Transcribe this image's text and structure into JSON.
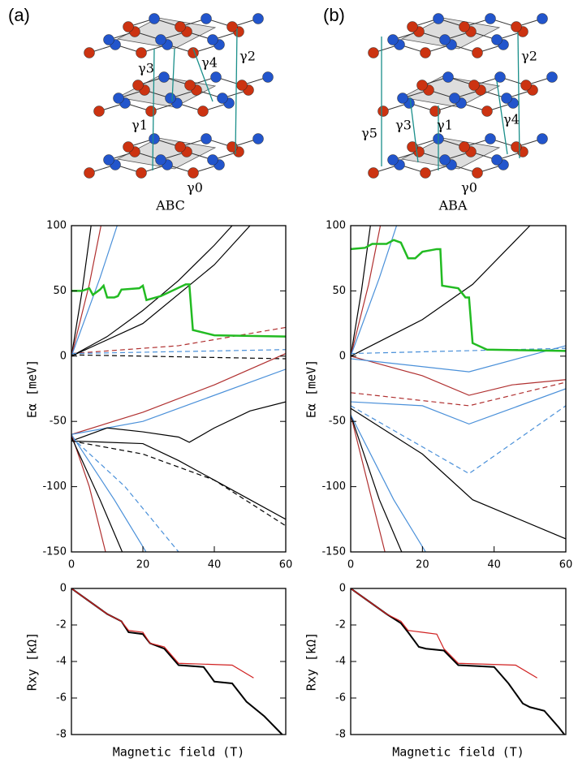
{
  "diagrams": [
    {
      "label": "(a)",
      "stacking": "ABC",
      "gammas": [
        "γ3",
        "γ4",
        "γ2",
        "γ1",
        "γ0"
      ]
    },
    {
      "label": "(b)",
      "stacking": "ABA",
      "gammas": [
        "γ2",
        "γ5",
        "γ3",
        "γ1",
        "γ4",
        "γ0"
      ]
    }
  ],
  "chart_data": [
    {
      "type": "line",
      "y_label": "Eα [meV]",
      "xlim": [
        0,
        60
      ],
      "ylim": [
        -150,
        100
      ],
      "xticks": [
        0,
        20,
        40,
        60
      ],
      "yticks": [
        100,
        50,
        0,
        -50,
        -100,
        -150
      ],
      "series": [
        {
          "color": "#000000",
          "x": [
            0,
            3,
            6
          ],
          "values": [
            0,
            50,
            110
          ]
        },
        {
          "color": "#b03030",
          "x": [
            0,
            5,
            9
          ],
          "values": [
            0,
            55,
            110
          ]
        },
        {
          "color": "#4a90d9",
          "x": [
            0,
            8,
            14
          ],
          "values": [
            0,
            60,
            110
          ]
        },
        {
          "color": "#000000",
          "x": [
            0,
            10,
            20,
            30,
            40,
            45
          ],
          "values": [
            0,
            15,
            35,
            58,
            85,
            100
          ]
        },
        {
          "color": "#000000",
          "x": [
            0,
            20,
            40,
            50
          ],
          "values": [
            0,
            25,
            70,
            100
          ]
        },
        {
          "color": "#b03030",
          "dash": true,
          "x": [
            0,
            30,
            60
          ],
          "values": [
            2,
            8,
            22
          ]
        },
        {
          "color": "#4a90d9",
          "dash": true,
          "x": [
            0,
            60
          ],
          "values": [
            2,
            5
          ]
        },
        {
          "color": "#000000",
          "dash": true,
          "x": [
            0,
            60
          ],
          "values": [
            1,
            -2
          ]
        },
        {
          "color": "#b03030",
          "x": [
            0,
            20,
            40,
            60
          ],
          "values": [
            -60,
            -43,
            -22,
            2
          ]
        },
        {
          "color": "#4a90d9",
          "x": [
            0,
            20,
            35,
            60
          ],
          "values": [
            -60,
            -50,
            -35,
            -10
          ]
        },
        {
          "color": "#000000",
          "x": [
            0,
            10,
            20,
            30,
            33,
            40,
            50,
            60
          ],
          "values": [
            -65,
            -55,
            -58,
            -62,
            -66,
            -55,
            -42,
            -35
          ]
        },
        {
          "color": "#000000",
          "x": [
            0,
            20,
            30,
            40,
            50,
            60
          ],
          "values": [
            -65,
            -67,
            -80,
            -95,
            -110,
            -125
          ]
        },
        {
          "color": "#000000",
          "dash": true,
          "x": [
            0,
            20,
            40,
            60
          ],
          "values": [
            -65,
            -75,
            -95,
            -130
          ]
        },
        {
          "color": "#4a90d9",
          "dash": true,
          "x": [
            0,
            15,
            30
          ],
          "values": [
            -62,
            -100,
            -150
          ]
        },
        {
          "color": "#b03030",
          "x": [
            0,
            5,
            10
          ],
          "values": [
            -60,
            -100,
            -155
          ]
        },
        {
          "color": "#000000",
          "x": [
            0,
            8,
            15
          ],
          "values": [
            -62,
            -110,
            -155
          ]
        },
        {
          "color": "#4a90d9",
          "x": [
            0,
            12,
            22
          ],
          "values": [
            -60,
            -110,
            -155
          ]
        },
        {
          "color": "#22bb22",
          "width": 2.5,
          "x": [
            0,
            3,
            5,
            6,
            8,
            9,
            10,
            12,
            13,
            14,
            19,
            20,
            21,
            25,
            32,
            33,
            34,
            40,
            60
          ],
          "values": [
            50,
            50,
            52,
            47,
            51,
            54,
            45,
            45,
            46,
            51,
            52,
            54,
            43,
            46,
            55,
            55,
            20,
            16,
            15
          ]
        }
      ]
    },
    {
      "type": "line",
      "y_label": "Rxy [kΩ]",
      "x_label": "Magnetic field (T)",
      "xlim": [
        0,
        60
      ],
      "ylim": [
        -8,
        0
      ],
      "yticks": [
        0,
        -2,
        -4,
        -6,
        -8
      ],
      "series": [
        {
          "color": "#000000",
          "width": 2,
          "x": [
            0,
            5,
            10,
            14,
            16,
            20,
            22,
            26,
            30,
            37,
            40,
            45,
            49,
            54,
            58,
            60
          ],
          "values": [
            0,
            -0.7,
            -1.4,
            -1.8,
            -2.4,
            -2.5,
            -3.0,
            -3.3,
            -4.2,
            -4.3,
            -5.1,
            -5.2,
            -6.2,
            -7.0,
            -7.8,
            -8.2
          ]
        },
        {
          "color": "#d02020",
          "x": [
            0,
            5,
            10,
            14,
            16,
            20,
            22,
            26,
            30,
            45,
            51
          ],
          "values": [
            0,
            -0.7,
            -1.4,
            -1.8,
            -2.3,
            -2.4,
            -3.0,
            -3.2,
            -4.1,
            -4.2,
            -4.9
          ]
        }
      ]
    },
    {
      "type": "line",
      "y_label": "Eα [meV]",
      "xlim": [
        0,
        60
      ],
      "ylim": [
        -150,
        100
      ],
      "xticks": [
        0,
        20,
        40,
        60
      ],
      "yticks": [
        100,
        50,
        0,
        -50,
        -100,
        -150
      ],
      "series": [
        {
          "color": "#000000",
          "x": [
            0,
            3,
            6
          ],
          "values": [
            0,
            50,
            110
          ]
        },
        {
          "color": "#b03030",
          "x": [
            0,
            5,
            9
          ],
          "values": [
            0,
            55,
            110
          ]
        },
        {
          "color": "#4a90d9",
          "x": [
            0,
            8,
            14
          ],
          "values": [
            0,
            60,
            110
          ]
        },
        {
          "color": "#000000",
          "x": [
            0,
            20,
            34,
            50
          ],
          "values": [
            0,
            28,
            55,
            100
          ]
        },
        {
          "color": "#b03030",
          "x": [
            0,
            20,
            33,
            45,
            60
          ],
          "values": [
            0,
            -15,
            -30,
            -22,
            -18
          ]
        },
        {
          "color": "#4a90d9",
          "x": [
            0,
            33,
            60
          ],
          "values": [
            -2,
            -12,
            8
          ]
        },
        {
          "color": "#4a90d9",
          "dash": true,
          "x": [
            0,
            60
          ],
          "values": [
            2,
            6
          ]
        },
        {
          "color": "#4a90d9",
          "x": [
            0,
            20,
            33,
            60
          ],
          "values": [
            -35,
            -38,
            -52,
            -25
          ]
        },
        {
          "color": "#4a90d9",
          "dash": true,
          "x": [
            0,
            33,
            60
          ],
          "values": [
            -38,
            -90,
            -38
          ]
        },
        {
          "color": "#b03030",
          "dash": true,
          "x": [
            0,
            33,
            60
          ],
          "values": [
            -28,
            -38,
            -20
          ]
        },
        {
          "color": "#000000",
          "x": [
            0,
            20,
            34,
            60
          ],
          "values": [
            -40,
            -75,
            -110,
            -140
          ]
        },
        {
          "color": "#b03030",
          "x": [
            0,
            5,
            10
          ],
          "values": [
            -45,
            -100,
            -155
          ]
        },
        {
          "color": "#000000",
          "x": [
            0,
            8,
            15
          ],
          "values": [
            -45,
            -110,
            -155
          ]
        },
        {
          "color": "#4a90d9",
          "x": [
            0,
            12,
            22
          ],
          "values": [
            -45,
            -110,
            -155
          ]
        },
        {
          "color": "#22bb22",
          "width": 2.5,
          "x": [
            0,
            4,
            6,
            10,
            12,
            14,
            16,
            18,
            20,
            24,
            25,
            25.5,
            30,
            32,
            33,
            34,
            38,
            60
          ],
          "values": [
            82,
            83,
            86,
            86,
            89,
            87,
            75,
            75,
            80,
            82,
            82,
            54,
            52,
            45,
            45,
            10,
            5,
            4
          ]
        }
      ]
    },
    {
      "type": "line",
      "y_label": "Rxy [kΩ]",
      "x_label": "Magnetic field (T)",
      "xlim": [
        0,
        60
      ],
      "ylim": [
        -8,
        0
      ],
      "yticks": [
        0,
        -2,
        -4,
        -6,
        -8
      ],
      "series": [
        {
          "color": "#000000",
          "width": 2,
          "x": [
            0,
            5,
            10,
            14,
            16,
            19,
            21,
            26,
            30,
            40,
            44,
            48,
            50,
            54,
            58,
            60
          ],
          "values": [
            0,
            -0.7,
            -1.4,
            -1.9,
            -2.4,
            -3.2,
            -3.3,
            -3.4,
            -4.2,
            -4.3,
            -5.2,
            -6.3,
            -6.5,
            -6.7,
            -7.6,
            -8.1
          ]
        },
        {
          "color": "#d02020",
          "x": [
            0,
            5,
            10,
            14,
            16,
            20,
            24,
            26,
            30,
            46,
            52
          ],
          "values": [
            0,
            -0.7,
            -1.4,
            -1.8,
            -2.3,
            -2.4,
            -2.5,
            -3.3,
            -4.1,
            -4.2,
            -4.9
          ]
        }
      ]
    }
  ]
}
